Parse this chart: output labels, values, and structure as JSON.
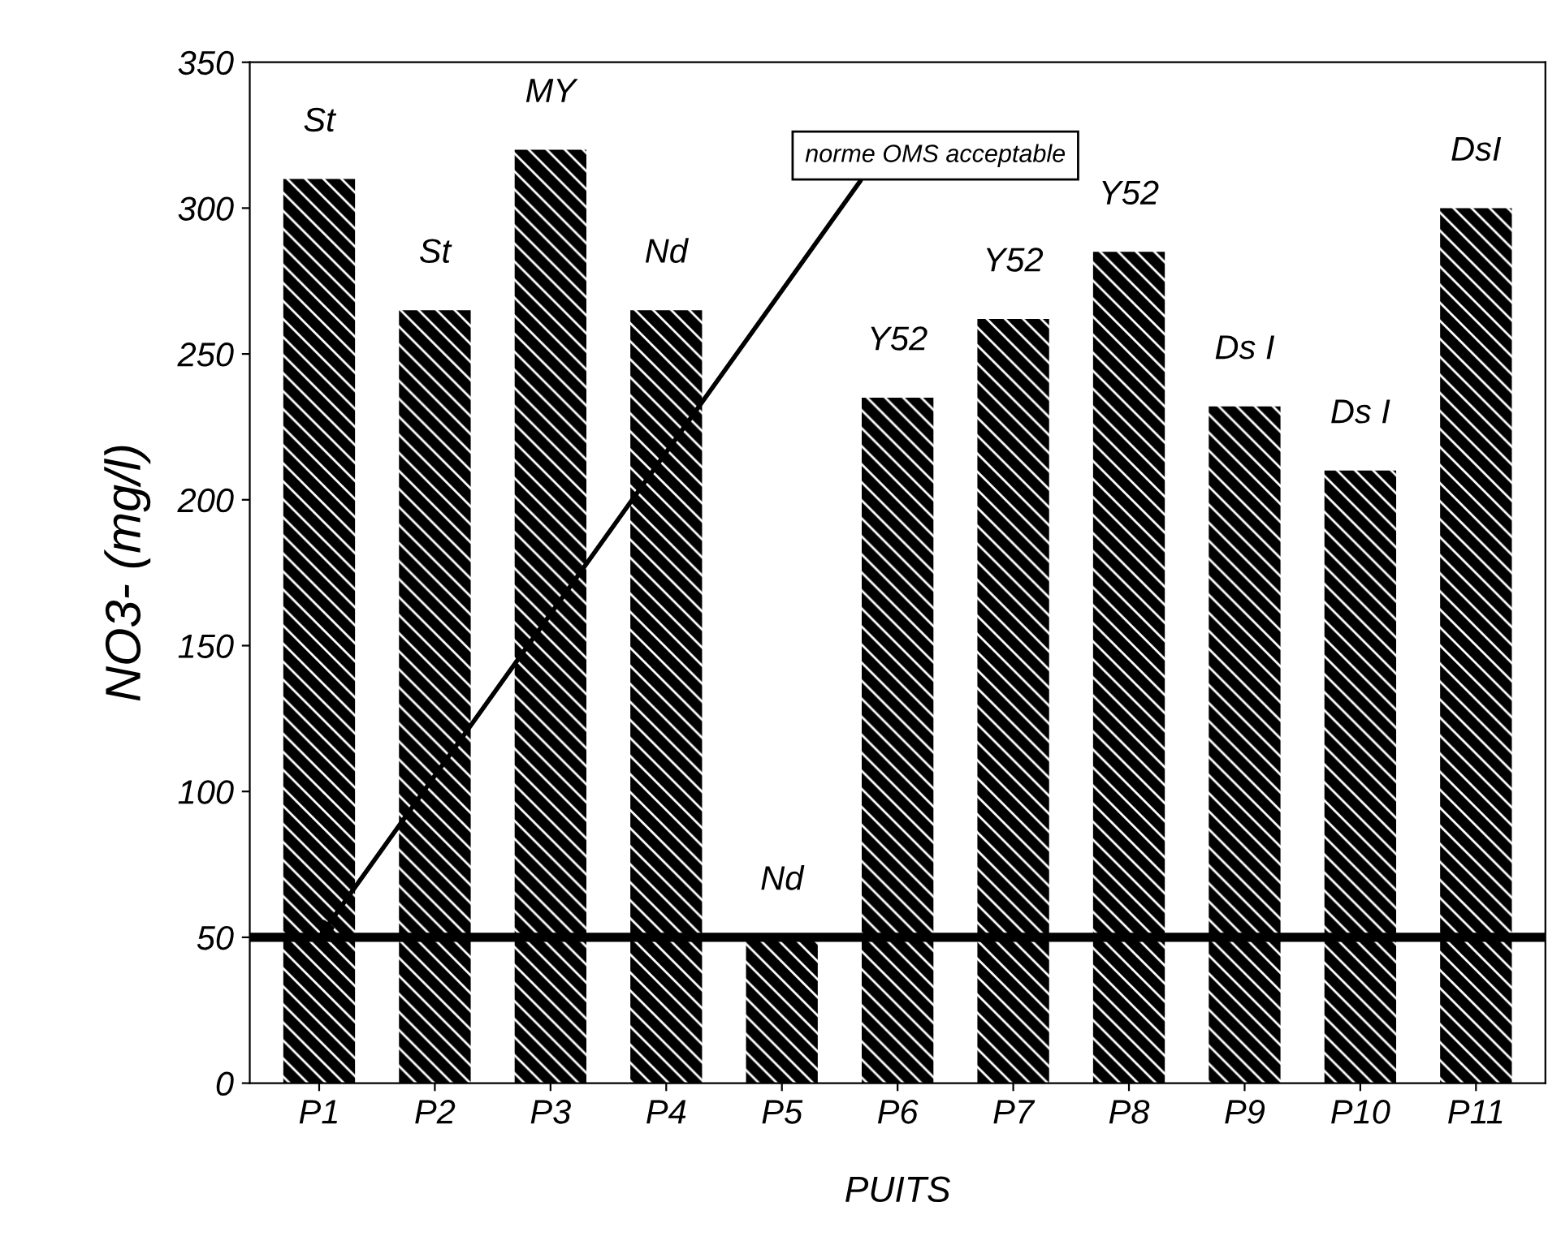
{
  "chart_data": {
    "type": "bar",
    "categories": [
      "P1",
      "P2",
      "P3",
      "P4",
      "P5",
      "P6",
      "P7",
      "P8",
      "P9",
      "P10",
      "P11"
    ],
    "values": [
      310,
      265,
      320,
      265,
      50,
      235,
      262,
      285,
      232,
      210,
      300
    ],
    "value_labels": [
      "St",
      "St",
      "MY",
      "Nd",
      "Nd",
      "Y52",
      "Y52",
      "Y52",
      "Ds I",
      "Ds I",
      "DsI"
    ],
    "color": "#000000",
    "xlabel": "PUITS",
    "ylabel": "NO3- (mg/l)",
    "ylim": [
      0,
      350
    ],
    "yticks": [
      0,
      50,
      100,
      150,
      200,
      250,
      300,
      350
    ],
    "ref_lines": [
      {
        "axis": "y",
        "value": 50,
        "color": "#000000"
      }
    ],
    "annotations": [
      {
        "text": "norme OMS acceptable",
        "x": "P1",
        "y": 50
      }
    ]
  }
}
